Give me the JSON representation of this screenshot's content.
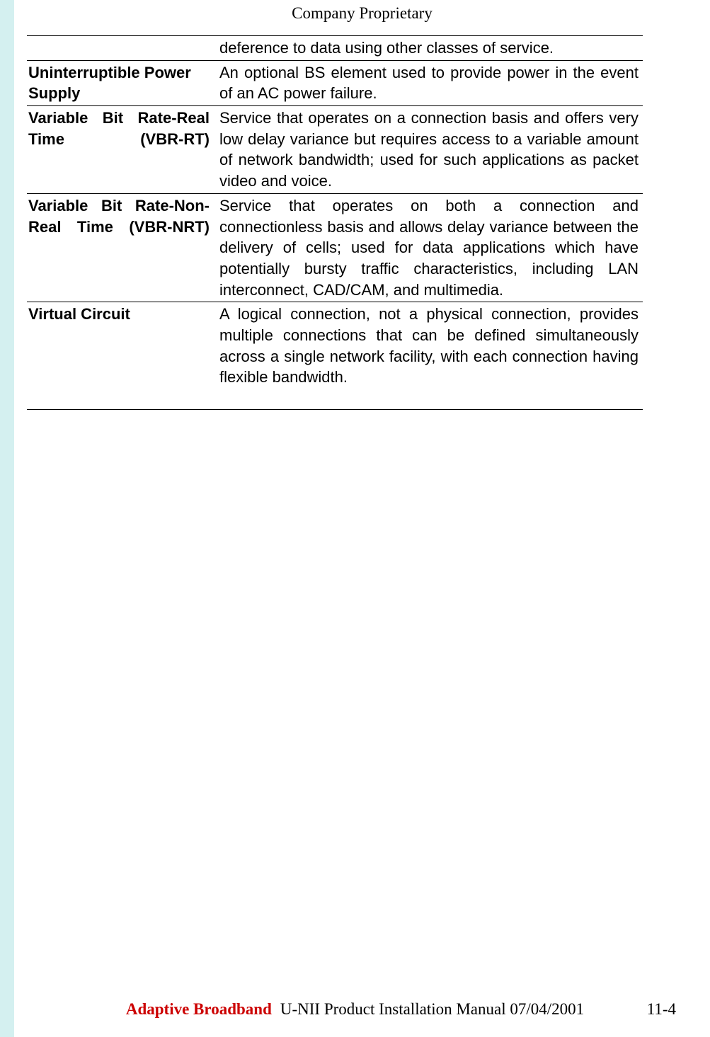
{
  "header": {
    "classification": "Company Proprietary"
  },
  "glossary": {
    "rows": [
      {
        "term": "",
        "definition": "deference to data using other classes of service.",
        "term_justify": false
      },
      {
        "term": "Uninterruptible Power Supply",
        "definition": "An optional BS element used to provide power in the event of an AC power failure.",
        "term_justify": false
      },
      {
        "term": "Variable Bit Rate-Real Time (VBR-RT)",
        "definition": "Service that operates on a connection basis and offers very low delay variance but requires access to a variable amount of network bandwidth; used for such applications as packet video and voice.",
        "term_justify": true
      },
      {
        "term": "Variable Bit Rate-Non-Real Time (VBR-NRT)",
        "definition": "Service that operates on both a connection and connectionless basis and allows delay variance between the delivery of cells; used for data applications which have potentially bursty traffic characteristics, including LAN interconnect, CAD/CAM, and multimedia.",
        "term_justify": true
      },
      {
        "term": "Virtual Circuit",
        "definition": "A logical connection, not a physical connection, provides multiple connections that can be defined simultaneously across a single network facility, with each connection having flexible bandwidth.",
        "term_justify": false
      }
    ]
  },
  "footer": {
    "company": "Adaptive Broadband",
    "title": "U-NII Product Installation Manual  07/04/2001",
    "page_number": "11-4"
  },
  "colors": {
    "left_margin": "#d4f0f0",
    "company_text": "#cc0000",
    "text": "#000000",
    "background": "#ffffff"
  }
}
